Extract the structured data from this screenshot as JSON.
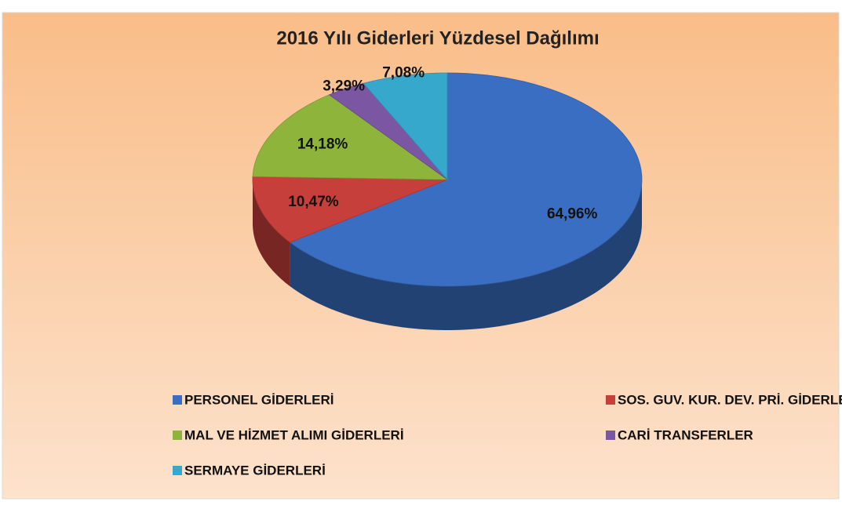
{
  "chart_data": {
    "type": "pie",
    "title": "2016 Yılı Giderleri Yüzdesel Dağılımı",
    "categories": [
      "PERSONEL GİDERLERİ",
      "SOS. GUV. KUR. DEV. PRİ. GİDERLERİ",
      "MAL VE HİZMET ALIMI GİDERLERİ",
      "CARİ TRANSFERLER",
      "SERMAYE GİDERLERİ"
    ],
    "values": [
      64.96,
      10.47,
      14.18,
      3.29,
      7.08
    ],
    "value_labels": [
      "64,96%",
      "10,47%",
      "14,18%",
      "3,29%",
      "7,08%"
    ],
    "colors": [
      "#3a6ec2",
      "#c63f3a",
      "#8fb43c",
      "#7b56a3",
      "#36a8cb"
    ],
    "legend": "bottom"
  }
}
